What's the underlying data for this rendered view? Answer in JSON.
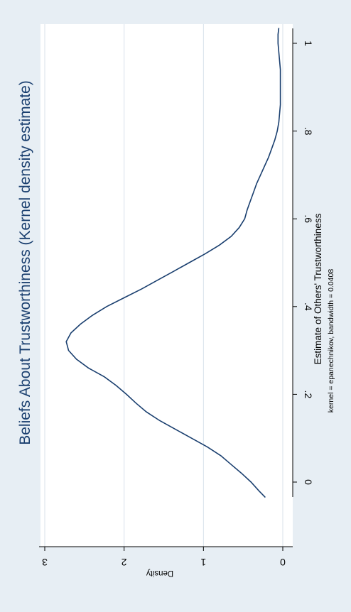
{
  "colors": {
    "background": "#e7eef4",
    "plot_region": "#ffffff",
    "line": "#1a3f6f",
    "grid": "#d8e1ea",
    "title": "#1a3f6f",
    "text": "#000000"
  },
  "chart_data": {
    "type": "line",
    "orientation": "rotated-90-clockwise",
    "title": "Beliefs About Trustworthiness (Kernel density estimate)",
    "xlabel": "Estimate of Others' Trustworthiness",
    "ylabel": "Density",
    "note": "kernel = epanechnikov, bandwidth = 0.0408",
    "xlim": [
      -0.05,
      1.05
    ],
    "ylim": [
      -0.1,
      3.1
    ],
    "x_ticks": [
      0,
      0.2,
      0.4,
      0.6,
      0.8,
      1
    ],
    "x_tick_labels": [
      "0",
      ".2",
      ".4",
      ".6",
      ".8",
      "1"
    ],
    "y_ticks": [
      0,
      1,
      2,
      3
    ],
    "y_tick_labels": [
      "0",
      "1",
      "2",
      "3"
    ],
    "grid": true,
    "series": [
      {
        "x": [
          -0.035,
          -0.02,
          0.0,
          0.02,
          0.04,
          0.06,
          0.08,
          0.1,
          0.12,
          0.14,
          0.16,
          0.18,
          0.2,
          0.22,
          0.24,
          0.26,
          0.28,
          0.3,
          0.32,
          0.34,
          0.36,
          0.38,
          0.4,
          0.42,
          0.44,
          0.46,
          0.48,
          0.5,
          0.52,
          0.54,
          0.56,
          0.58,
          0.6,
          0.62,
          0.64,
          0.66,
          0.68,
          0.7,
          0.72,
          0.74,
          0.76,
          0.78,
          0.8,
          0.82,
          0.84,
          0.86,
          0.88,
          0.9,
          0.92,
          0.94,
          0.96,
          0.98,
          1.0,
          1.02,
          1.035
        ],
        "y": [
          0.22,
          0.3,
          0.4,
          0.52,
          0.65,
          0.78,
          0.95,
          1.15,
          1.35,
          1.55,
          1.72,
          1.85,
          1.97,
          2.1,
          2.25,
          2.45,
          2.6,
          2.7,
          2.73,
          2.67,
          2.55,
          2.4,
          2.22,
          2.0,
          1.78,
          1.58,
          1.38,
          1.18,
          0.98,
          0.8,
          0.65,
          0.55,
          0.48,
          0.45,
          0.41,
          0.37,
          0.33,
          0.28,
          0.23,
          0.18,
          0.14,
          0.1,
          0.07,
          0.05,
          0.04,
          0.03,
          0.03,
          0.03,
          0.03,
          0.03,
          0.04,
          0.05,
          0.06,
          0.06,
          0.05
        ]
      }
    ]
  }
}
